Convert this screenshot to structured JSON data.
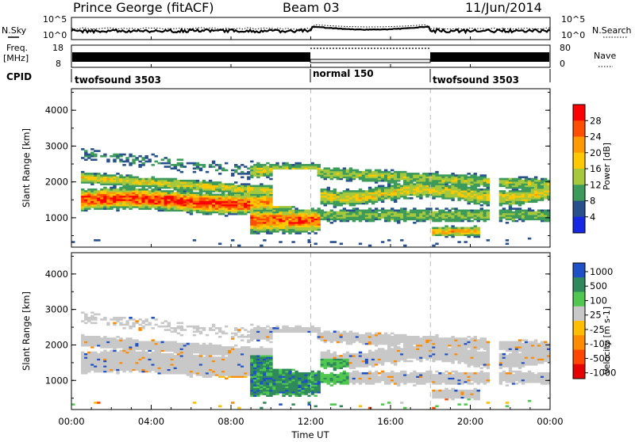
{
  "header": {
    "station": "Prince George (fitACF)",
    "beam": "Beam 03",
    "date": "11/Jun/2014"
  },
  "summary": {
    "nsky_label": "N.Sky",
    "nsearch_label": "N.Search",
    "freq_label": "Freq.",
    "freq_unit": "[MHz]",
    "nave_label": "Nave",
    "cpid_label": "CPID",
    "noise_ticks": [
      "10^5",
      "10^0"
    ],
    "freq_ticks": [
      "18",
      "8"
    ],
    "nave_ticks": [
      "80",
      "0"
    ]
  },
  "cpid_segments": [
    {
      "label": "twofsound 3503",
      "start_hour": 0,
      "end_hour": 12
    },
    {
      "label": "normal 150",
      "start_hour": 12,
      "end_hour": 18
    },
    {
      "label": "twofsound 3503",
      "start_hour": 18,
      "end_hour": 24
    }
  ],
  "power_colorbar": {
    "label": "Power [dB]",
    "ticks": [
      "28",
      "24",
      "20",
      "16",
      "12",
      "8",
      "4"
    ],
    "colors": [
      "#ff0000",
      "#ff4e00",
      "#ff9a00",
      "#ffc800",
      "#a6c83c",
      "#3c9a5a",
      "#28508c",
      "#1428e6"
    ]
  },
  "velocity_colorbar": {
    "label": "Velocity [m s-1]",
    "ticks": [
      "1000",
      "500",
      "100",
      "25",
      "-25",
      "-100",
      "-500",
      "-1000"
    ],
    "colors": [
      "#1e50c8",
      "#2e8a5a",
      "#50c850",
      "#c8c8c8",
      "#ffbe00",
      "#ff8c00",
      "#ff4600",
      "#e60000"
    ]
  },
  "chart_data": [
    {
      "type": "heatmap",
      "title": "Power",
      "ylabel": "Slant Range [km]",
      "xlabel": "",
      "y_ticks": [
        "4000",
        "3000",
        "2000",
        "1000"
      ],
      "ylim": [
        180,
        4600
      ],
      "xlim": [
        0,
        24
      ],
      "echo_bands": [
        {
          "name": "main band",
          "start_hour": 0.5,
          "end_hour": 11,
          "range_center_km": 1450,
          "peak_dB": 28
        },
        {
          "name": "upper band",
          "start_hour": 0.5,
          "end_hour": 11,
          "range_center_km": 2150,
          "peak_dB": 20
        }
      ]
    },
    {
      "type": "heatmap",
      "title": "Velocity",
      "ylabel": "Slant Range [km]",
      "xlabel": "Time UT",
      "x_ticks": [
        "00:00",
        "04:00",
        "08:00",
        "12:00",
        "16:00",
        "20:00",
        "00:00"
      ],
      "y_ticks": [
        "4000",
        "3000",
        "2000",
        "1000"
      ],
      "ylim": [
        180,
        4600
      ],
      "xlim": [
        0,
        24
      ]
    }
  ]
}
